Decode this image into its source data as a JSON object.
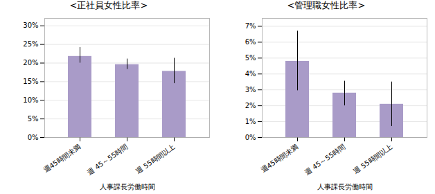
{
  "chart_data": [
    {
      "type": "bar",
      "title": "<正社員女性比率>",
      "xlabel": "人事課長労働時間",
      "categories": [
        "週45時間未満",
        "週 45～55時間",
        "週 55時間以上"
      ],
      "values": [
        21.8,
        19.6,
        17.8
      ],
      "yerr_upper": [
        2.4,
        1.5,
        3.5
      ],
      "yerr_lower": [
        1.8,
        1.3,
        3.3
      ],
      "color": "#a99bc8",
      "ylim": [
        0,
        32
      ],
      "yticks": [
        {
          "value": 0,
          "label": "0%"
        },
        {
          "value": 5,
          "label": "5%"
        },
        {
          "value": 10,
          "label": "10%"
        },
        {
          "value": 15,
          "label": "15%"
        },
        {
          "value": 20,
          "label": "20%"
        },
        {
          "value": 25,
          "label": "25%"
        },
        {
          "value": 30,
          "label": "30%"
        }
      ],
      "grid": true
    },
    {
      "type": "bar",
      "title": "<管理職女性比率>",
      "xlabel": "人事課長労働時間",
      "categories": [
        "週45時間未満",
        "週 45～55時間",
        "週 55時間以上"
      ],
      "values": [
        4.8,
        2.8,
        2.1
      ],
      "yerr_upper": [
        1.9,
        0.75,
        1.4
      ],
      "yerr_lower": [
        1.85,
        0.8,
        1.4
      ],
      "color": "#a99bc8",
      "ylim": [
        0,
        7.5
      ],
      "yticks": [
        {
          "value": 0,
          "label": "0%"
        },
        {
          "value": 1,
          "label": "1%"
        },
        {
          "value": 2,
          "label": "2%"
        },
        {
          "value": 3,
          "label": "3%"
        },
        {
          "value": 4,
          "label": "4%"
        },
        {
          "value": 5,
          "label": "5%"
        },
        {
          "value": 6,
          "label": "6%"
        },
        {
          "value": 7,
          "label": "7%"
        }
      ],
      "grid": true
    }
  ]
}
